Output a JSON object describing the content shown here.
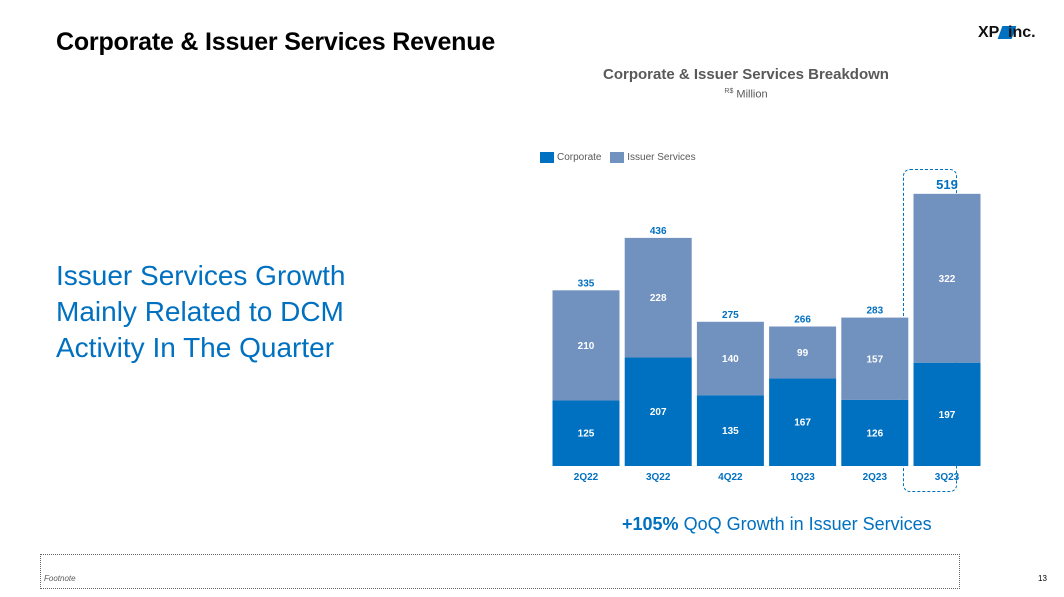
{
  "header": {
    "title": "Corporate & Issuer Services Revenue"
  },
  "logo": {
    "prefix": "XP",
    "suffix": "inc.",
    "accent": "#0070c0"
  },
  "headline": "Issuer Services Growth Mainly Related to DCM Activity In The Quarter",
  "highlight_line": {
    "pct": "+105%",
    "text": " QoQ Growth in Issuer Services"
  },
  "footer": {
    "footnote": "Footnote",
    "page_number": "13"
  },
  "chart_data": {
    "type": "bar",
    "stacked": true,
    "title": "Corporate & Issuer Services Breakdown",
    "subtitle_currency": "R$",
    "subtitle_unit": " Million",
    "categories": [
      "2Q22",
      "3Q22",
      "4Q22",
      "1Q23",
      "2Q23",
      "3Q23"
    ],
    "series": [
      {
        "name": "Corporate",
        "values": [
          125,
          207,
          135,
          167,
          126,
          197
        ],
        "color": "#0070c0"
      },
      {
        "name": "Issuer Services",
        "values": [
          210,
          228,
          140,
          99,
          157,
          322
        ],
        "color": "#7191bf"
      }
    ],
    "totals": [
      335,
      436,
      275,
      266,
      283,
      519
    ],
    "highlighted_category": "3Q23",
    "legend_position": "top-left",
    "ylim": [
      0,
      519
    ],
    "grid": false,
    "colors": {
      "total_label": "#0070c0",
      "tick_label": "#0070c0",
      "inner_label": "#ffffff"
    }
  }
}
